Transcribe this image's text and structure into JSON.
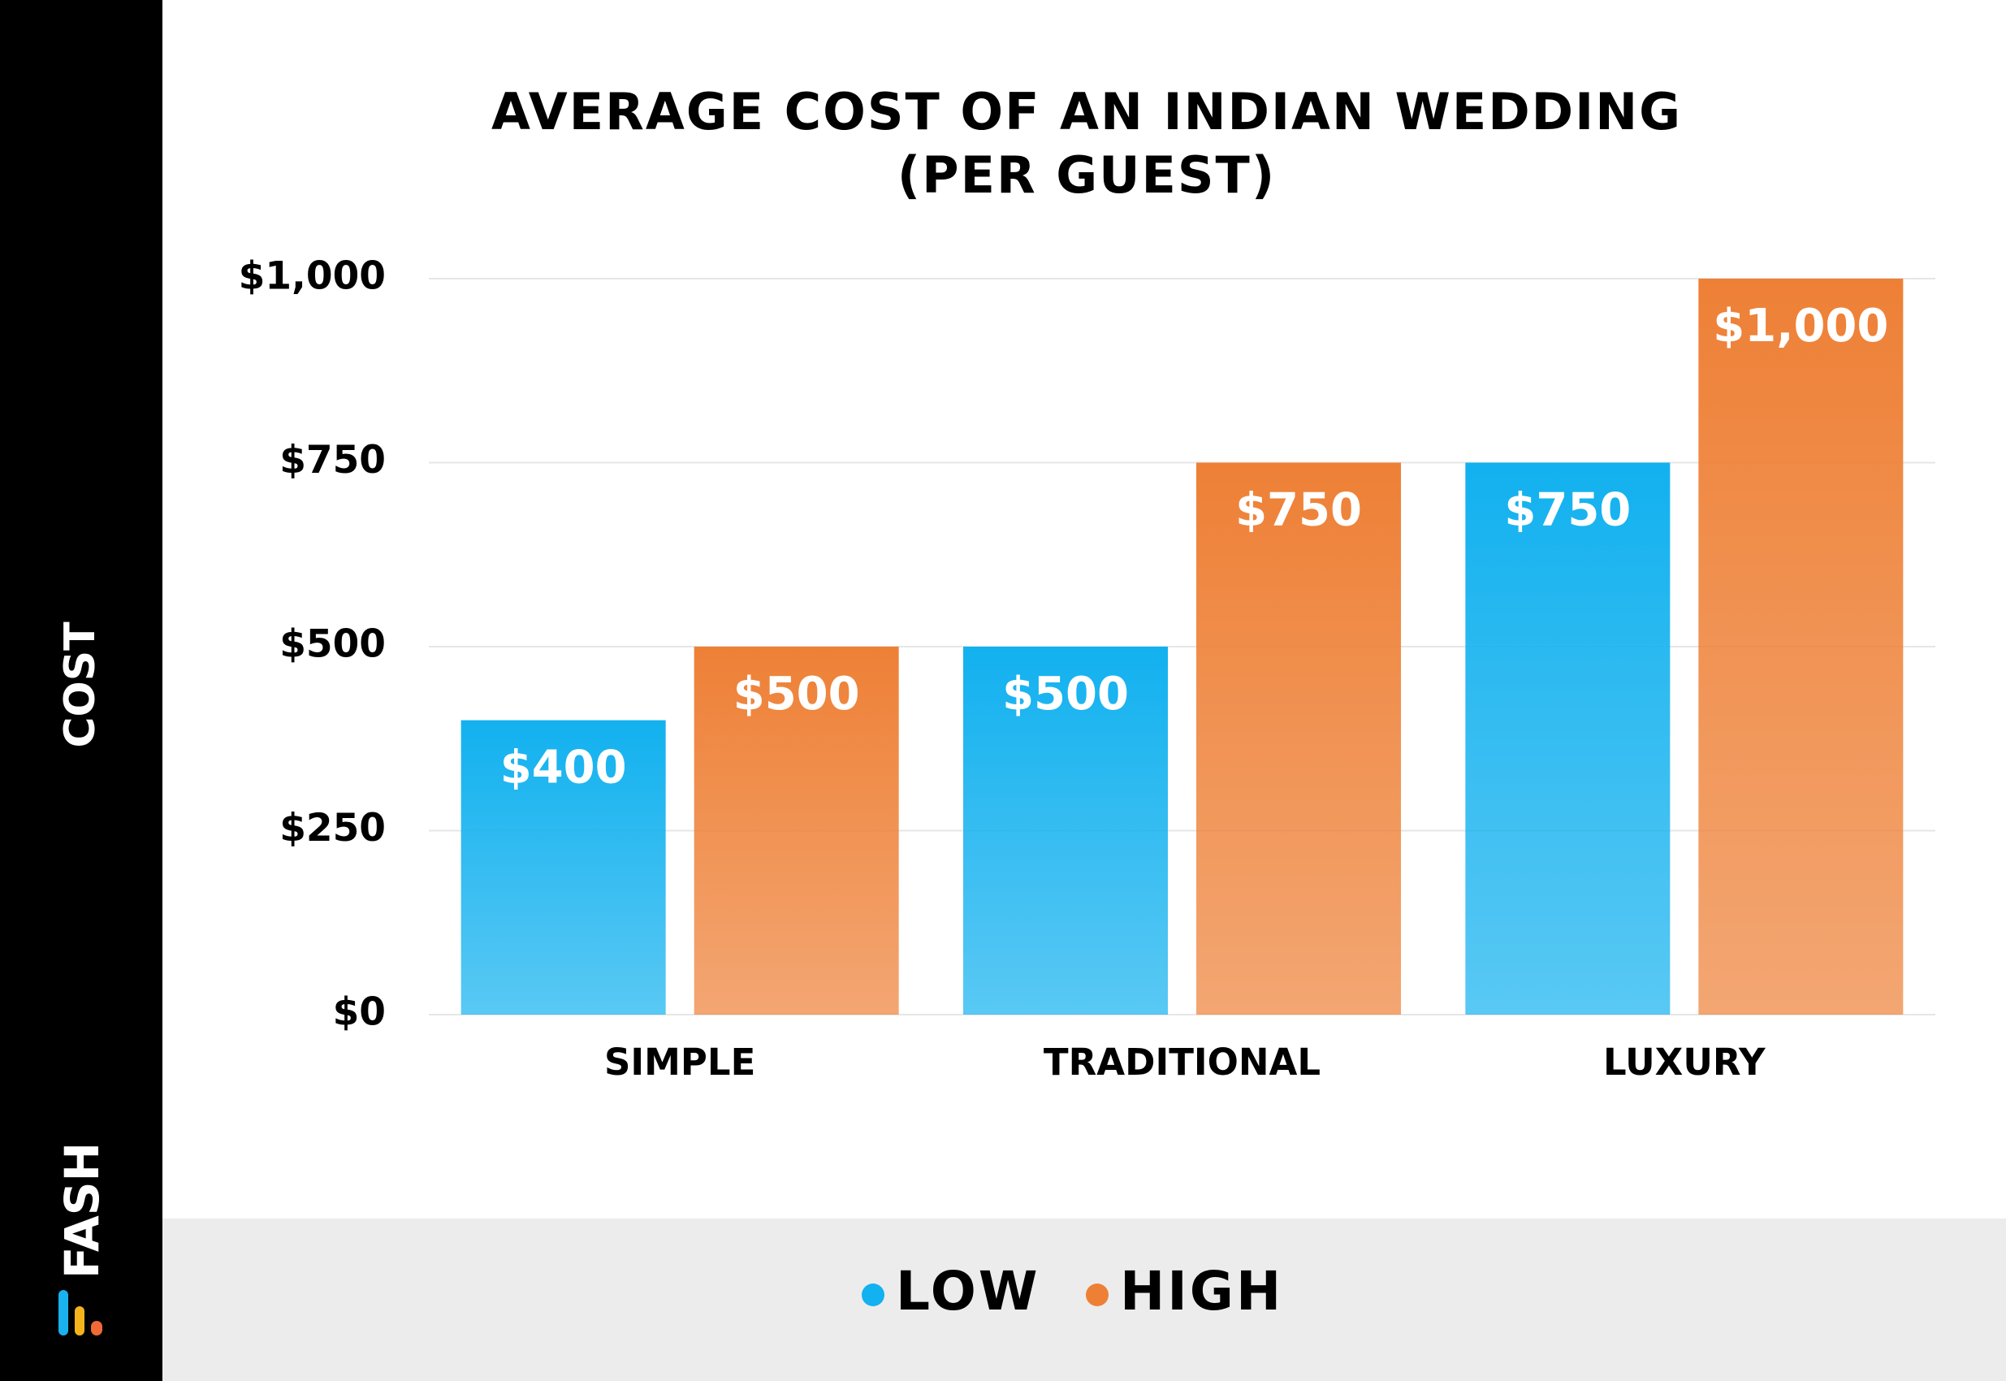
{
  "brand": "FASH",
  "chart_data": {
    "type": "bar",
    "title": "AVERAGE COST OF AN INDIAN WEDDING",
    "subtitle": "(PER GUEST)",
    "y_label": "COST",
    "categories": [
      "SIMPLE",
      "TRADITIONAL",
      "LUXURY"
    ],
    "series": [
      {
        "name": "LOW",
        "color": "#12b1ef",
        "values": [
          400,
          500,
          750
        ],
        "value_labels": [
          "$400",
          "$500",
          "$750"
        ]
      },
      {
        "name": "HIGH",
        "color": "#ee8036",
        "values": [
          500,
          750,
          1000
        ],
        "value_labels": [
          "$500",
          "$750",
          "$1,000"
        ]
      }
    ],
    "ylim": [
      0,
      1000
    ],
    "yticks": [
      {
        "value": 0,
        "label": "$0"
      },
      {
        "value": 250,
        "label": "$250"
      },
      {
        "value": 500,
        "label": "$500"
      },
      {
        "value": 750,
        "label": "$750"
      },
      {
        "value": 1000,
        "label": "$1,000"
      }
    ],
    "grid": true,
    "legend": "bottom"
  }
}
